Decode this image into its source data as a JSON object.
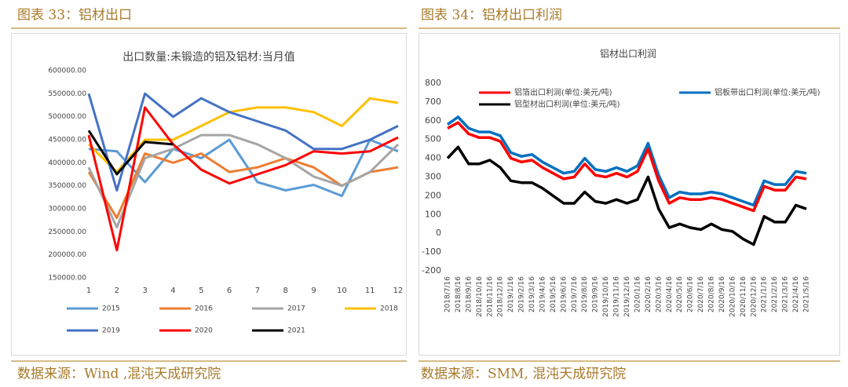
{
  "captions": [
    "图表 33：铝材出口",
    "图表 34：铝材出口利润"
  ],
  "sources": [
    "数据来源：Wind ,混沌天成研究院",
    "数据来源：SMM, 混沌天成研究院"
  ],
  "chart_data": [
    {
      "type": "line",
      "title": "出口数量:未锻造的铝及铝材:当月值",
      "categories": [
        "1",
        "2",
        "3",
        "4",
        "5",
        "6",
        "7",
        "8",
        "9",
        "10",
        "11",
        "12"
      ],
      "ylim": [
        150000,
        600000
      ],
      "yticks": [
        {
          "value": 150000,
          "label": "150000.00"
        },
        {
          "value": 200000,
          "label": "200000.00"
        },
        {
          "value": 250000,
          "label": "250000.00"
        },
        {
          "value": 300000,
          "label": "300000.00"
        },
        {
          "value": 350000,
          "label": "350000.00"
        },
        {
          "value": 400000,
          "label": "400000.00"
        },
        {
          "value": 450000,
          "label": "450000.00"
        },
        {
          "value": 500000,
          "label": "500000.00"
        },
        {
          "value": 550000,
          "label": "550000.00"
        },
        {
          "value": 600000,
          "label": "600000.00"
        }
      ],
      "grid": false,
      "legend": "bottom",
      "series": [
        {
          "name": "2015",
          "color": "#5b9bd5",
          "values": [
            430000,
            425000,
            358000,
            430000,
            410000,
            450000,
            358000,
            340000,
            352000,
            328000,
            450000,
            425000
          ]
        },
        {
          "name": "2016",
          "color": "#ed7d31",
          "values": [
            380000,
            280000,
            420000,
            400000,
            420000,
            380000,
            390000,
            410000,
            390000,
            350000,
            380000,
            390000
          ]
        },
        {
          "name": "2017",
          "color": "#a5a5a5",
          "values": [
            390000,
            260000,
            410000,
            430000,
            460000,
            460000,
            440000,
            410000,
            370000,
            350000,
            380000,
            440000
          ]
        },
        {
          "name": "2018",
          "color": "#ffc000",
          "values": [
            440000,
            380000,
            450000,
            450000,
            480000,
            510000,
            520000,
            520000,
            510000,
            480000,
            540000,
            530000
          ]
        },
        {
          "name": "2019",
          "color": "#4472c4",
          "values": [
            550000,
            340000,
            550000,
            500000,
            540000,
            510000,
            490000,
            470000,
            430000,
            430000,
            450000,
            480000
          ]
        },
        {
          "name": "2020",
          "color": "#ff0000",
          "values": [
            460000,
            210000,
            520000,
            440000,
            385000,
            355000,
            375000,
            395000,
            425000,
            420000,
            425000,
            455000
          ]
        },
        {
          "name": "2021",
          "color": "#000000",
          "values": [
            470000,
            375000,
            445000,
            440000,
            null,
            null,
            null,
            null,
            null,
            null,
            null,
            null
          ]
        }
      ]
    },
    {
      "type": "line",
      "title": "铝材出口利润",
      "categories": [
        "2018/7/16",
        "2018/8/16",
        "2018/9/16",
        "2018/10/16",
        "2018/11/16",
        "2018/12/16",
        "2019/1/16",
        "2019/2/16",
        "2019/3/16",
        "2019/4/16",
        "2019/5/16",
        "2019/6/16",
        "2019/7/16",
        "2019/8/16",
        "2019/9/16",
        "2019/10/16",
        "2019/11/16",
        "2019/12/16",
        "2020/1/16",
        "2020/2/16",
        "2020/3/16",
        "2020/4/16",
        "2020/5/16",
        "2020/6/16",
        "2020/7/16",
        "2020/8/16",
        "2020/9/16",
        "2020/10/16",
        "2020/11/16",
        "2020/12/16",
        "2021/1/16",
        "2021/2/16",
        "2021/3/16",
        "2021/4/16",
        "2021/5/16"
      ],
      "ylim": [
        -200,
        800
      ],
      "yticks": [
        -200,
        -100,
        0,
        100,
        200,
        300,
        400,
        500,
        600,
        700,
        800
      ],
      "grid": false,
      "legend": "top",
      "series": [
        {
          "name": "铝板带出口利润(单位:美元/吨)",
          "color": "#0070c0",
          "values": [
            580,
            620,
            560,
            540,
            540,
            520,
            430,
            410,
            420,
            380,
            350,
            320,
            330,
            400,
            340,
            330,
            350,
            330,
            360,
            480,
            310,
            190,
            220,
            210,
            210,
            220,
            210,
            190,
            170,
            150,
            280,
            260,
            260,
            330,
            320
          ]
        },
        {
          "name": "铝箔出口利润(单位:美元/吨)",
          "color": "#ff0000",
          "values": [
            560,
            590,
            530,
            510,
            510,
            490,
            400,
            380,
            390,
            350,
            320,
            290,
            300,
            370,
            310,
            300,
            320,
            300,
            330,
            450,
            280,
            160,
            190,
            180,
            180,
            190,
            180,
            160,
            140,
            120,
            250,
            230,
            230,
            300,
            290
          ]
        },
        {
          "name": "铝型材出口利润(单位:美元/吨)",
          "color": "#000000",
          "values": [
            400,
            460,
            370,
            370,
            390,
            350,
            280,
            270,
            270,
            240,
            200,
            160,
            160,
            220,
            170,
            160,
            180,
            160,
            180,
            300,
            130,
            30,
            50,
            30,
            20,
            50,
            20,
            10,
            -30,
            -60,
            90,
            60,
            60,
            150,
            130
          ]
        }
      ]
    }
  ]
}
